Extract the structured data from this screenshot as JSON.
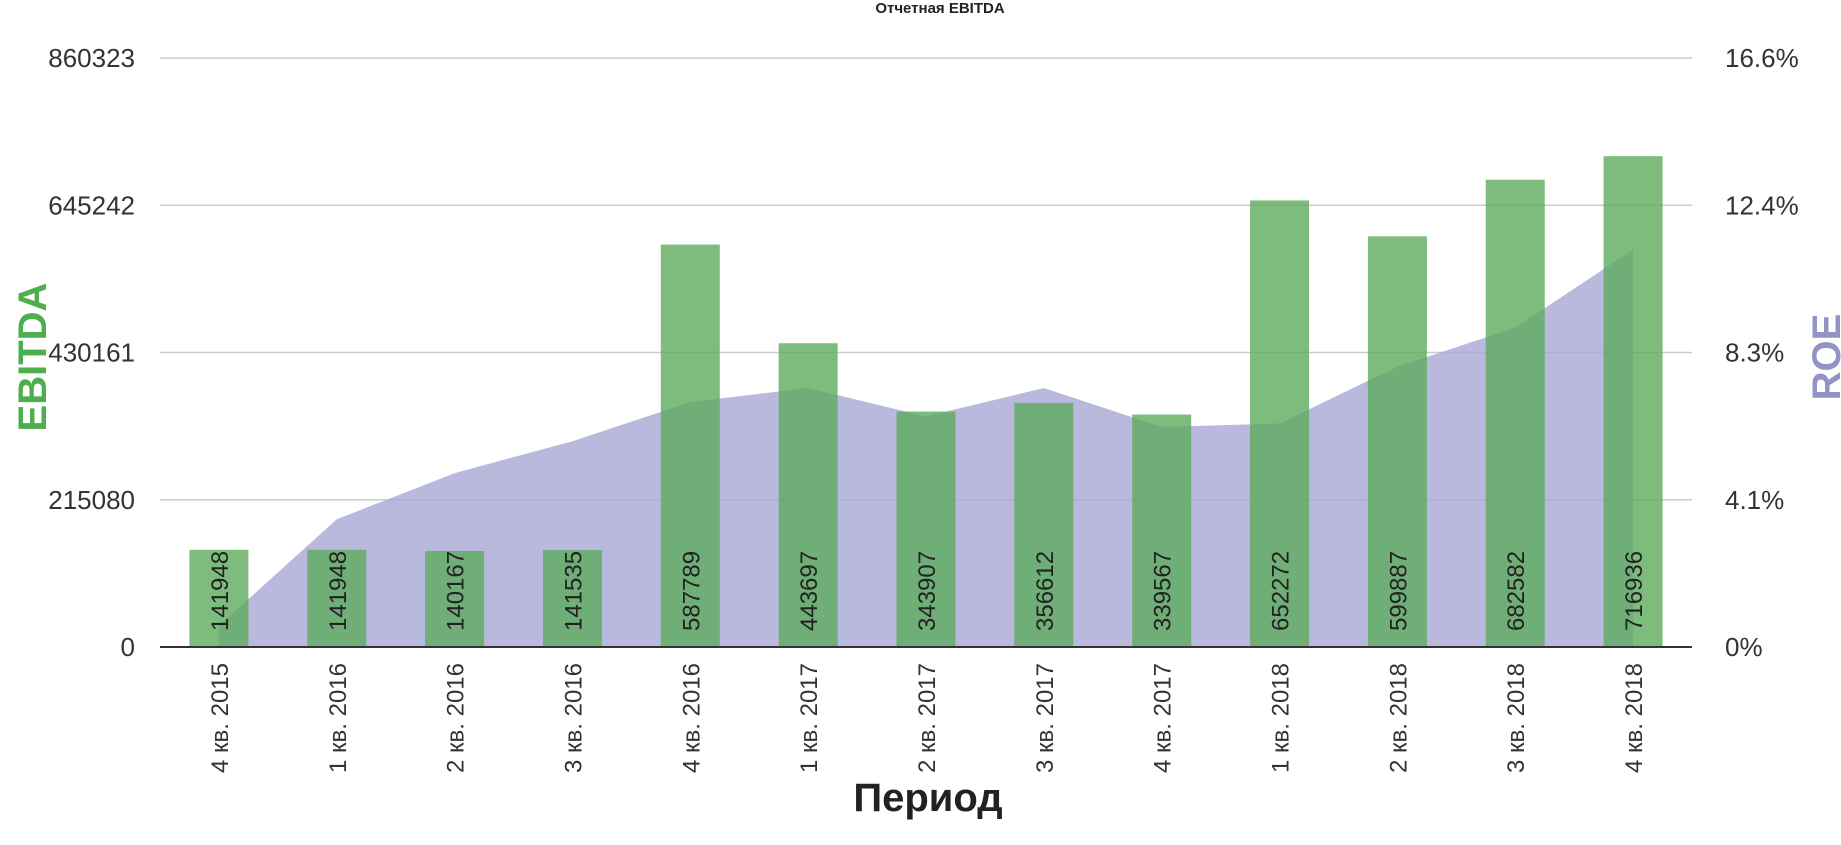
{
  "chart_data": {
    "type": "bar",
    "title": "Отчетная EBITDA",
    "xlabel": "Период",
    "ylabel": "EBITDA",
    "y2label": "ROE",
    "categories": [
      "4 кв. 2015",
      "1 кв. 2016",
      "2 кв. 2016",
      "3 кв. 2016",
      "4 кв. 2016",
      "1 кв. 2017",
      "2 кв. 2017",
      "3 кв. 2017",
      "4 кв. 2017",
      "1 кв. 2018",
      "2 кв. 2018",
      "3 кв. 2018",
      "4 кв. 2018"
    ],
    "series": [
      {
        "name": "EBITDA",
        "axis": "left",
        "type": "bar",
        "color": "#5cab5c",
        "values": [
          141948,
          141948,
          140167,
          141535,
          587789,
          443697,
          343907,
          356612,
          339567,
          652272,
          599887,
          682582,
          716936
        ]
      },
      {
        "name": "ROE",
        "axis": "right",
        "type": "area",
        "color": "#a8a8d6",
        "values": [
          0.6,
          3.6,
          4.9,
          5.8,
          6.9,
          7.3,
          6.5,
          7.3,
          6.2,
          6.3,
          7.9,
          9.0,
          11.2
        ]
      }
    ],
    "yticks": [
      "0",
      "215080",
      "430161",
      "645242",
      "860323"
    ],
    "ylim": [
      0,
      860323
    ],
    "y2ticks": [
      "0%",
      "4.1%",
      "8.3%",
      "12.4%",
      "16.6%"
    ],
    "y2lim": [
      0,
      16.6
    ],
    "ylabel_color": "#4cae4c",
    "y2label_color": "#9393c4",
    "grid": true
  }
}
